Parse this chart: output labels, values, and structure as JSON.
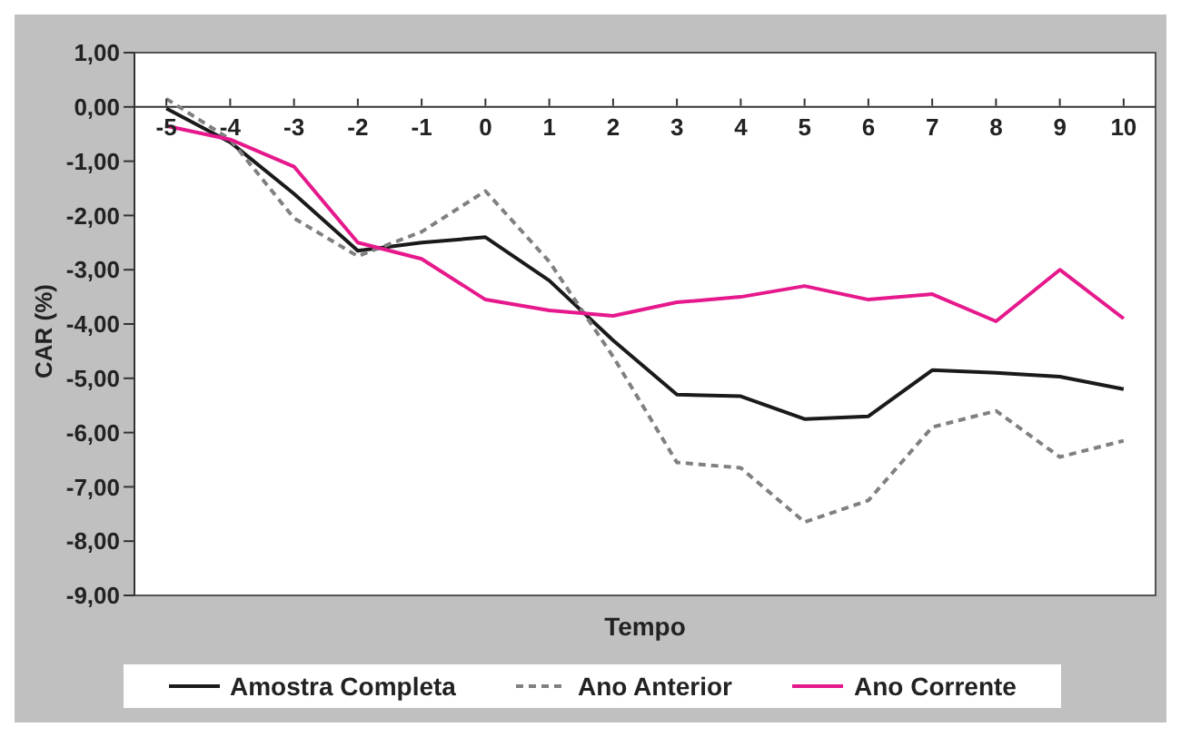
{
  "chart_data": {
    "type": "line",
    "xlabel": "Tempo",
    "ylabel": "CAR (%)",
    "categories": [
      "-5",
      "-4",
      "-3",
      "-2",
      "-1",
      "0",
      "1",
      "2",
      "3",
      "4",
      "5",
      "6",
      "7",
      "8",
      "9",
      "10"
    ],
    "series": [
      {
        "name": "Amostra Completa",
        "color": "#1a1a1a",
        "line_style": "solid",
        "values": [
          -0.03,
          -0.65,
          -1.6,
          -2.65,
          -2.5,
          -2.4,
          -3.2,
          -4.3,
          -5.3,
          -5.33,
          -5.75,
          -5.7,
          -4.85,
          -4.9,
          -4.97,
          -5.2
        ]
      },
      {
        "name": "Ano Anterior",
        "color": "#808080",
        "line_style": "dashed",
        "values": [
          0.15,
          -0.6,
          -2.05,
          -2.75,
          -2.3,
          -1.55,
          -2.85,
          -4.6,
          -6.55,
          -6.65,
          -7.65,
          -7.25,
          -5.9,
          -5.6,
          -6.45,
          -6.15
        ]
      },
      {
        "name": "Ano Corrente",
        "color": "#e6198c",
        "line_style": "solid",
        "values": [
          -0.35,
          -0.6,
          -1.1,
          -2.5,
          -2.8,
          -3.55,
          -3.75,
          -3.85,
          -3.6,
          -3.5,
          -3.3,
          -3.55,
          -3.45,
          -3.95,
          -3.0,
          -3.9
        ]
      }
    ],
    "ylim": [
      -9,
      1
    ],
    "yticks": [
      {
        "value": 1,
        "label": "1,00"
      },
      {
        "value": 0,
        "label": "0,00"
      },
      {
        "value": -1,
        "label": "-1,00"
      },
      {
        "value": -2,
        "label": "-2,00"
      },
      {
        "value": -3,
        "label": "-3,00"
      },
      {
        "value": -4,
        "label": "-4,00"
      },
      {
        "value": -5,
        "label": "-5,00"
      },
      {
        "value": -6,
        "label": "-6,00"
      },
      {
        "value": -7,
        "label": "-7,00"
      },
      {
        "value": -8,
        "label": "-8,00"
      },
      {
        "value": -9,
        "label": "-9,00"
      }
    ],
    "marker": "none",
    "legend": "bottom"
  }
}
